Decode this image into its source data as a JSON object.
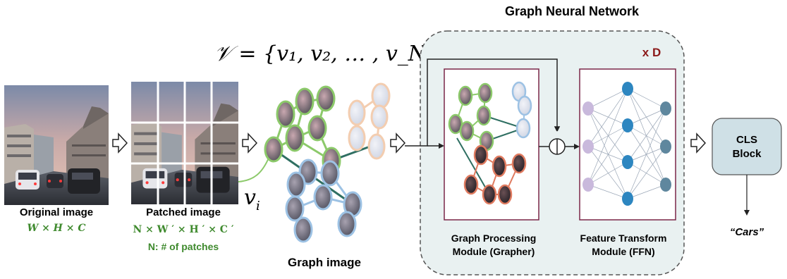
{
  "title": "Graph Neural Network",
  "vertex_set": "𝒱 = {v₁, v₂, … , v_N}",
  "vertex_label": "v",
  "vertex_label_sub": "i",
  "original": {
    "caption": "Original image",
    "dims": "W × H × C"
  },
  "patched": {
    "caption": "Patched image",
    "dims": "N × W ′ × H ′ × C ′",
    "note": "N: # of patches"
  },
  "graph_image_caption": "Graph image",
  "repeat_label": "x D",
  "grapher": {
    "line1": "Graph Processing",
    "line2": "Module (Grapher)"
  },
  "ffn": {
    "line1": "Feature Transform",
    "line2": "Module (FFN)"
  },
  "cls": {
    "line1": "CLS",
    "line2": "Block"
  },
  "output": "“Cars”",
  "colors": {
    "green_text": "#3f8a2e",
    "green_node": "#8cc96a",
    "red_node": "#e07b60",
    "blue_node": "#9dc2e4",
    "peach_node": "#f3cdb0",
    "dark_red_text": "#8b1a1a",
    "module_border": "#7a2748",
    "gnn_bg": "#e9f1f1",
    "cls_bg": "#cfe0e6",
    "ffn_left": "#c9b9dc",
    "ffn_mid": "#2d86c0",
    "ffn_right": "#5f879e"
  }
}
